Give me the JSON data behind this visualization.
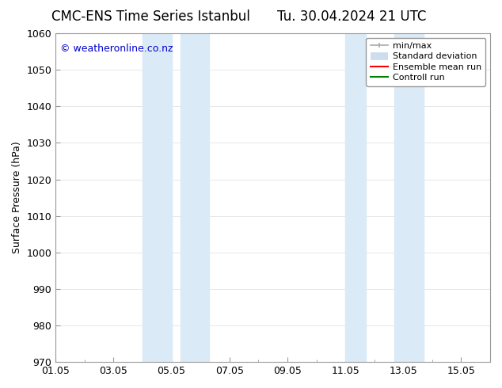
{
  "title_left": "CMC-ENS Time Series Istanbul",
  "title_right": "Tu. 30.04.2024 21 UTC",
  "ylabel": "Surface Pressure (hPa)",
  "ylim": [
    970,
    1060
  ],
  "yticks": [
    970,
    980,
    990,
    1000,
    1010,
    1020,
    1030,
    1040,
    1050,
    1060
  ],
  "xtick_labels": [
    "01.05",
    "03.05",
    "05.05",
    "07.05",
    "09.05",
    "11.05",
    "13.05",
    "15.05"
  ],
  "xtick_positions": [
    0,
    2,
    4,
    6,
    8,
    10,
    12,
    14
  ],
  "xlim": [
    0,
    15
  ],
  "shaded_regions": [
    {
      "x_start": 3.0,
      "x_end": 4.5,
      "color": "#daeaf6"
    },
    {
      "x_start": 5.0,
      "x_end": 5.5,
      "color": "#daeaf6"
    },
    {
      "x_start": 10.0,
      "x_end": 10.7,
      "color": "#daeaf6"
    },
    {
      "x_start": 11.7,
      "x_end": 12.7,
      "color": "#daeaf6"
    }
  ],
  "watermark_text": "© weatheronline.co.nz",
  "watermark_color": "#0000cc",
  "watermark_fontsize": 9,
  "legend_items": [
    {
      "label": "min/max",
      "color": "#aaaaaa",
      "lw": 1.5
    },
    {
      "label": "Standard deviation",
      "color": "#ccddee",
      "lw": 8
    },
    {
      "label": "Ensemble mean run",
      "color": "red",
      "lw": 1.5
    },
    {
      "label": "Controll run",
      "color": "green",
      "lw": 1.5
    }
  ],
  "bg_color": "#ffffff",
  "spine_color": "#999999",
  "title_fontsize": 12,
  "axis_label_fontsize": 9,
  "tick_fontsize": 9,
  "legend_fontsize": 8
}
